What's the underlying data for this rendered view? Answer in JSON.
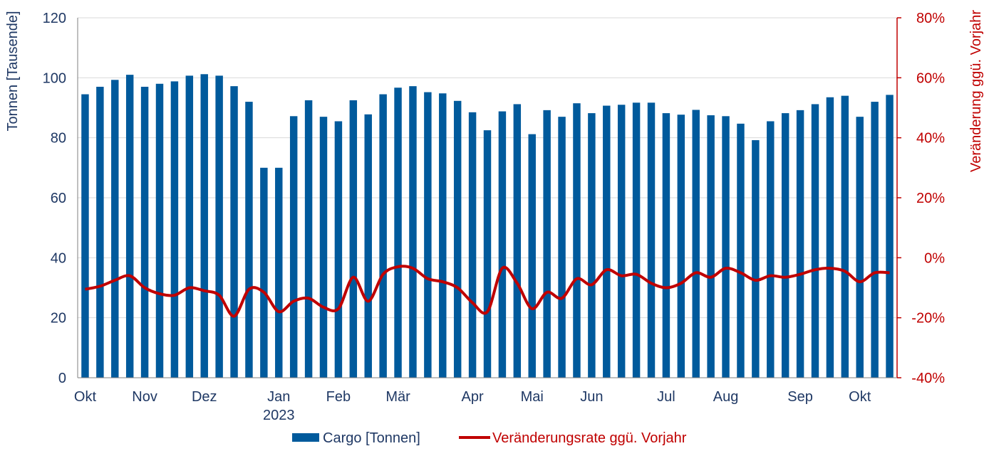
{
  "chart_data": {
    "type": "bar+line",
    "title": "",
    "ylabel_left": "Tonnen [Tausende]",
    "ylabel_right": "Veränderung ggü. Vorjahr",
    "ylim_left": [
      0,
      120
    ],
    "ylim_right": [
      -40,
      80
    ],
    "yticks_left": [
      "0",
      "20",
      "40",
      "60",
      "80",
      "100",
      "120"
    ],
    "yticks_right": [
      "-40%",
      "-20%",
      "0%",
      "20%",
      "40%",
      "60%",
      "80%"
    ],
    "x_month_labels": [
      {
        "label": "Okt",
        "index": 0
      },
      {
        "label": "Nov",
        "index": 4
      },
      {
        "label": "Dez",
        "index": 8
      },
      {
        "label": "Jan",
        "index": 13
      },
      {
        "label": "Feb",
        "index": 17
      },
      {
        "label": "Mär",
        "index": 21
      },
      {
        "label": "Apr",
        "index": 26
      },
      {
        "label": "Mai",
        "index": 30
      },
      {
        "label": "Jun",
        "index": 34
      },
      {
        "label": "Jul",
        "index": 39
      },
      {
        "label": "Aug",
        "index": 43
      },
      {
        "label": "Sep",
        "index": 48
      },
      {
        "label": "Okt",
        "index": 52
      }
    ],
    "year_label": {
      "label": "2023",
      "index": 13
    },
    "grid": true,
    "series": [
      {
        "name": "Cargo [Tonnen]",
        "type": "bar",
        "axis": "left",
        "color": "#005a9c",
        "values": [
          94.5,
          97,
          99.3,
          101,
          97,
          98,
          98.8,
          100.7,
          101.2,
          100.7,
          97.2,
          92,
          70,
          70,
          87.2,
          92.5,
          87,
          85.5,
          92.5,
          87.8,
          94.5,
          96.7,
          97.2,
          95.2,
          94.8,
          92.3,
          88.5,
          82.5,
          88.8,
          91.2,
          81.2,
          89.2,
          87,
          91.5,
          88.2,
          90.7,
          91,
          91.7,
          91.7,
          88.2,
          87.7,
          89.3,
          87.5,
          87.2,
          84.7,
          79.2,
          85.5,
          88.2,
          89.2,
          91.2,
          93.5,
          94,
          87,
          92,
          94.3
        ]
      },
      {
        "name": "Veränderungsrate ggü. Vorjahr",
        "type": "line",
        "axis": "right",
        "color": "#c00000",
        "values": [
          -10.5,
          -9.5,
          -7.5,
          -6,
          -10,
          -12,
          -12.5,
          -10,
          -11,
          -12.5,
          -19.5,
          -10.5,
          -11.5,
          -18,
          -14.5,
          -13.5,
          -16.5,
          -17,
          -6.5,
          -14.5,
          -5.5,
          -3,
          -3.5,
          -7,
          -8,
          -10,
          -15,
          -18,
          -3.5,
          -8.5,
          -17,
          -11.5,
          -13.5,
          -7,
          -9,
          -4,
          -6,
          -5.5,
          -8.5,
          -10,
          -8.5,
          -5,
          -6.5,
          -3.5,
          -5,
          -7.5,
          -6,
          -6.5,
          -5.5,
          -4,
          -3.5,
          -4.5,
          -8,
          -5,
          -5
        ]
      }
    ],
    "legend": {
      "position": "bottom",
      "items": [
        "Cargo [Tonnen]",
        "Veränderungsrate ggü. Vorjahr"
      ]
    }
  }
}
